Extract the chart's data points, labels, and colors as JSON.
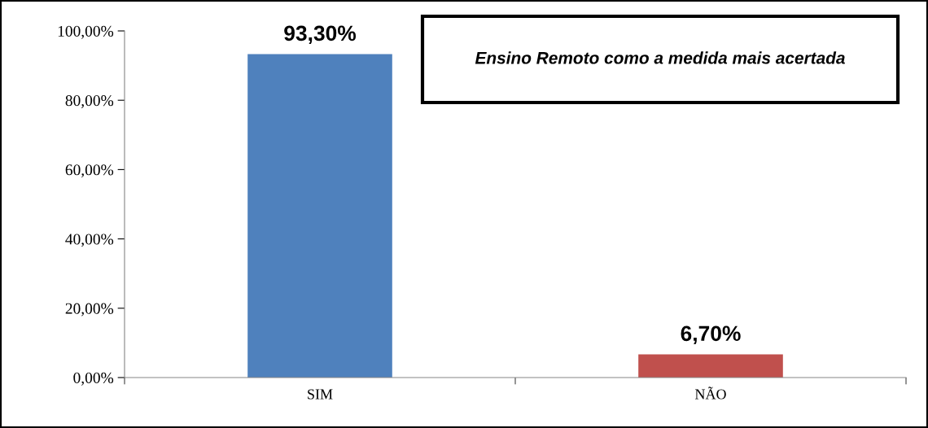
{
  "chart_data": {
    "type": "bar",
    "title": "Ensino Remoto como a medida mais acertada",
    "categories": [
      "SIM",
      "NÃO"
    ],
    "values": [
      93.3,
      6.7
    ],
    "colors": [
      "#4f81bd",
      "#c0504d"
    ],
    "value_labels": [
      "93,30%",
      "6,70%"
    ],
    "ylim": [
      0,
      100
    ],
    "yticks": [
      {
        "value": 0,
        "label": "0,00%"
      },
      {
        "value": 20,
        "label": "20,00%"
      },
      {
        "value": 40,
        "label": "40,00%"
      },
      {
        "value": 60,
        "label": "60,00%"
      },
      {
        "value": 80,
        "label": "80,00%"
      },
      {
        "value": 100,
        "label": "100,00%"
      }
    ],
    "grid": false,
    "legend": false
  }
}
